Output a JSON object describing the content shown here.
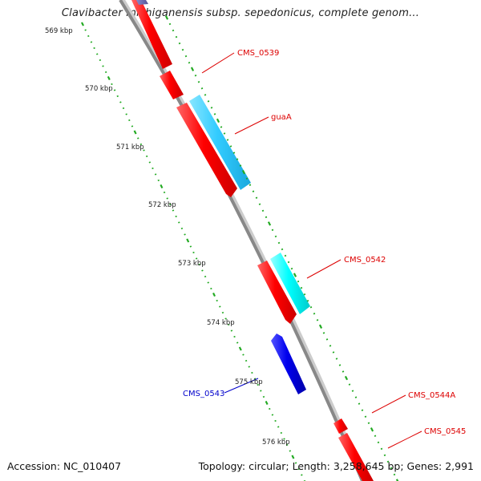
{
  "title": "Clavibacter michiganensis subsp. sepedonicus, complete genom...",
  "accession_text": "Accession: NC_010407",
  "summary_text": "Topology: circular; Length: 3,258,645 bp; Genes: 2,991",
  "colors": {
    "backbone": "#888888",
    "forward_cds": "#ff0000",
    "reverse_cds": "#0000ee",
    "rna_sky": "#33ccff",
    "rna_cyan": "#00ffff",
    "forward_ticks": "#22aa22",
    "reverse_ticks": "#006600",
    "forward_label": "#dd0000",
    "reverse_label": "#0000cc"
  },
  "ruler": [
    {
      "label": "569 kbp"
    },
    {
      "label": "570 kbp"
    },
    {
      "label": "571 kbp"
    },
    {
      "label": "572 kbp"
    },
    {
      "label": "573 kbp"
    },
    {
      "label": "574 kbp"
    },
    {
      "label": "575 kbp"
    },
    {
      "label": "576 kbp"
    }
  ],
  "feature_labels": [
    {
      "text": "CMS_0539"
    },
    {
      "text": "guaA"
    },
    {
      "text": "CMS_0542"
    },
    {
      "text": "CMS_0543"
    },
    {
      "text": "CMS_0544A"
    },
    {
      "text": "CMS_0545"
    }
  ]
}
